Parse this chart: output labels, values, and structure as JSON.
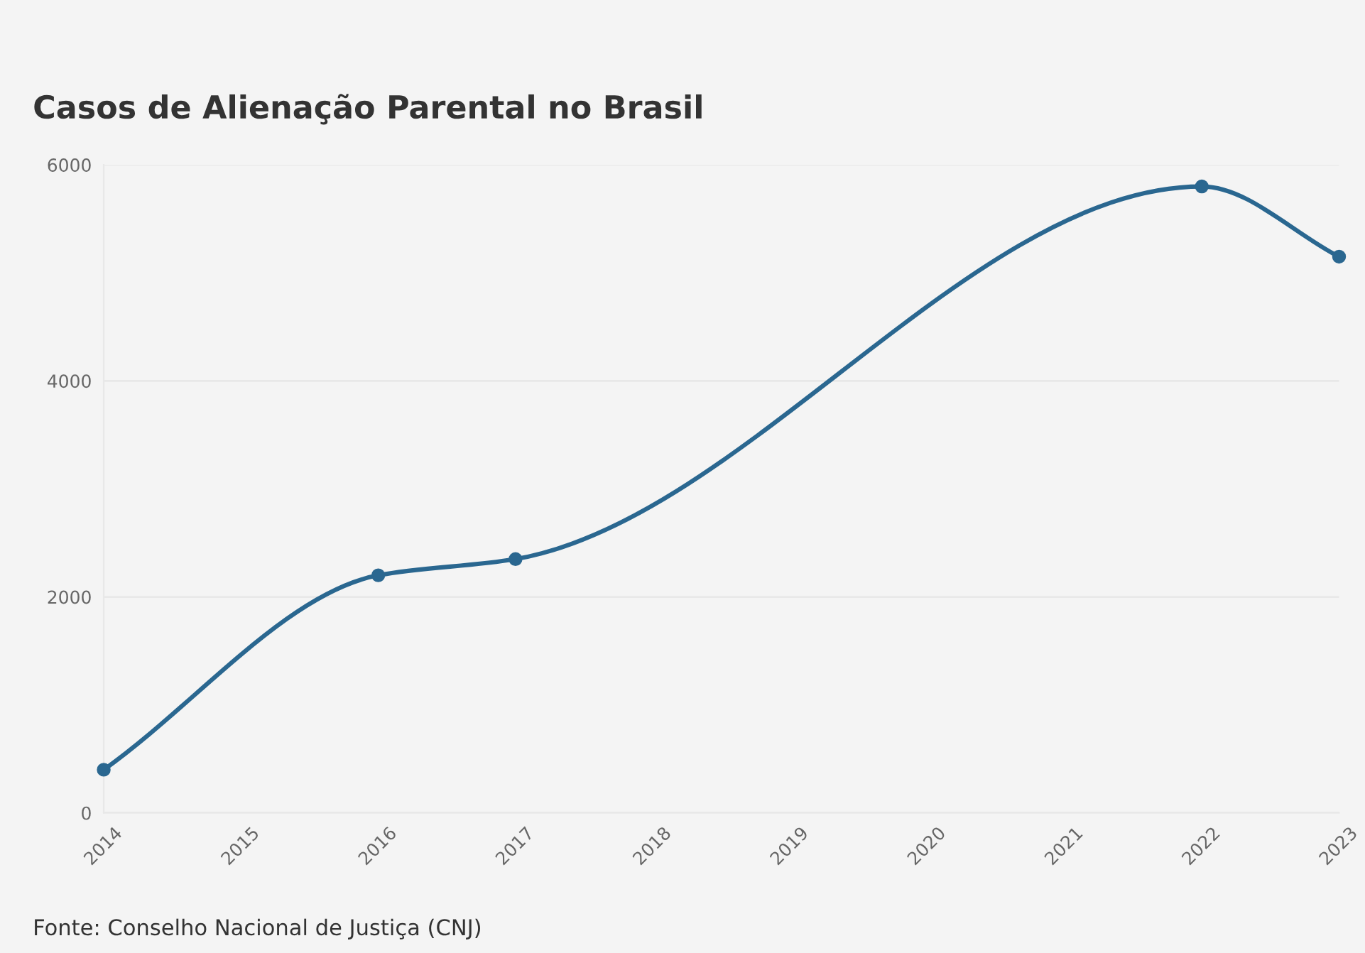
{
  "chart_data": {
    "type": "line",
    "title": "Casos de Alienação Parental no Brasil",
    "x": [
      2014,
      2016,
      2017,
      2022,
      2023
    ],
    "series": [
      {
        "color": "#2a6790",
        "values": [
          400,
          2200,
          2350,
          5800,
          5150
        ]
      }
    ],
    "xlim": [
      2014,
      2023
    ],
    "xticks": [
      2014,
      2015,
      2016,
      2017,
      2018,
      2019,
      2020,
      2021,
      2022,
      2023
    ],
    "ylim": [
      0,
      6000
    ],
    "yticks": [
      0,
      2000,
      4000,
      6000
    ],
    "grid": "y",
    "marker": "circle",
    "line_style": "solid",
    "annotations": [
      "Fonte: Conselho Nacional de Justiça (CNJ)"
    ]
  }
}
